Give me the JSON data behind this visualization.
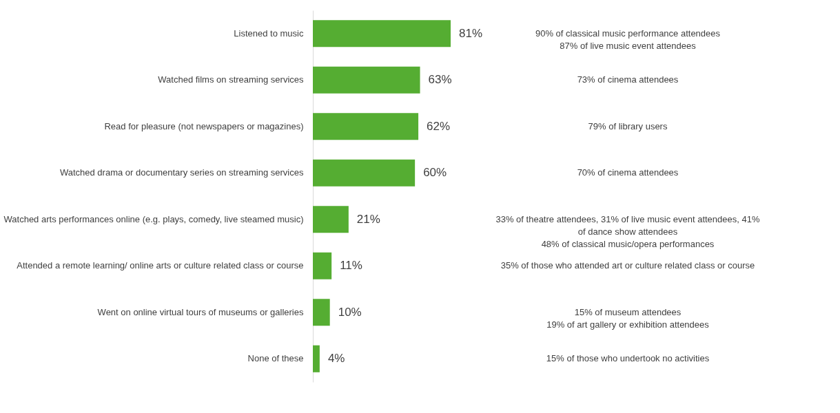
{
  "chart_data": {
    "type": "bar",
    "orientation": "horizontal",
    "categories": [
      "Listened to music",
      "Watched films on streaming services",
      "Read for pleasure (not newspapers or magazines)",
      "Watched drama or documentary series on streaming services",
      "Watched arts performances online (e.g. plays, comedy, live steamed music)",
      "Attended a remote learning/ online arts or culture related class or course",
      "Went on online virtual tours of museums or galleries",
      "None of these"
    ],
    "values": [
      81,
      63,
      62,
      60,
      21,
      11,
      10,
      4
    ],
    "value_labels": [
      "81%",
      "63%",
      "62%",
      "60%",
      "21%",
      "11%",
      "10%",
      "4%"
    ],
    "color": "#55ad32",
    "annotations": [
      "90% of classical music performance attendees\n87% of live music event attendees",
      "73% of cinema attendees",
      "79% of library users",
      "70% of cinema attendees",
      "33% of theatre attendees, 31% of live music event attendees, 41%\nof dance show attendees\n48% of classical music/opera performances",
      "35% of those who attended art or culture related class or course",
      "15% of museum attendees\n19% of art gallery or exhibition attendees",
      "15% of those who undertook no activities"
    ]
  }
}
